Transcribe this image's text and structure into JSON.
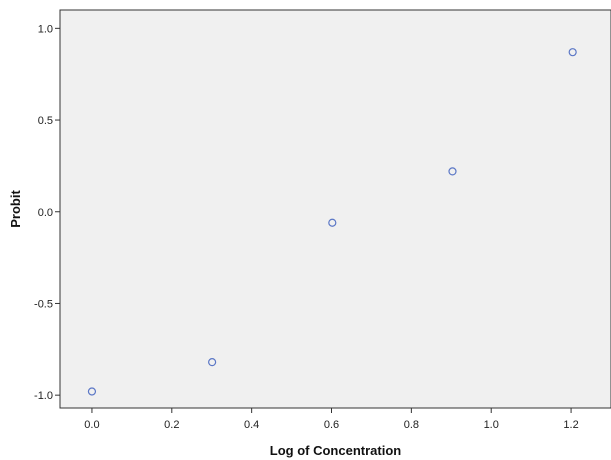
{
  "chart_data": {
    "type": "scatter",
    "title": "",
    "xlabel": "Log of Concentration",
    "ylabel": "Probit",
    "xlim": [
      -0.08,
      1.3
    ],
    "ylim": [
      -1.07,
      1.1
    ],
    "x_ticks": [
      0.0,
      0.2,
      0.4,
      0.6,
      0.8,
      1.0,
      1.2
    ],
    "x_tick_labels": [
      "0.0",
      "0.2",
      "0.4",
      "0.6",
      "0.8",
      "1.0",
      "1.2"
    ],
    "y_ticks": [
      1.0,
      0.5,
      0.0,
      -0.5,
      -1.0
    ],
    "y_tick_labels": [
      "1.0",
      "0.5",
      "0.0",
      "-0.5",
      "-1.0"
    ],
    "grid": false,
    "legend": "none",
    "series": [
      {
        "points": [
          {
            "x": 0.0,
            "y": -0.98
          },
          {
            "x": 0.301,
            "y": -0.82
          },
          {
            "x": 0.602,
            "y": -0.06
          },
          {
            "x": 0.903,
            "y": 0.22
          },
          {
            "x": 1.204,
            "y": 0.87
          }
        ]
      }
    ],
    "colors": {
      "plot_background": "#f0f0f0",
      "axis": "#333333",
      "marker": "#5b77c6"
    }
  }
}
